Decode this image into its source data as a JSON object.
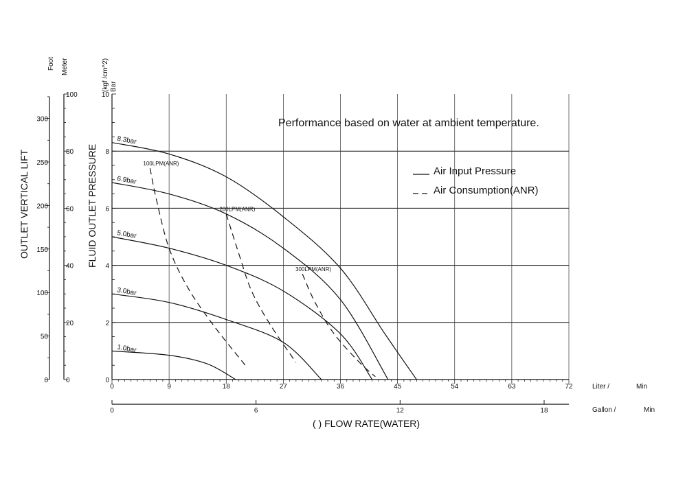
{
  "chart_data": {
    "type": "line",
    "title": "",
    "note": "Performance based on water at ambient temperature.",
    "xlabel": "(    ) FLOW RATE(WATER)",
    "x_units": {
      "primary": "Liter /",
      "primary_time": "Min",
      "secondary": "Gallon /",
      "secondary_time": "Min"
    },
    "xlim": [
      0,
      72
    ],
    "x_ticks": [
      0,
      9,
      18,
      27,
      36,
      45,
      54,
      63,
      72
    ],
    "x2_ticks": [
      0,
      6,
      12,
      18
    ],
    "x2_ticks_values_lpm": [
      0,
      22.7,
      45.4,
      68.1
    ],
    "ylabel": "FLUID OUTLET PRESSURE",
    "y_units": [
      "(kgf /cm^2)",
      "Bar"
    ],
    "ylim": [
      0,
      10
    ],
    "y_ticks": [
      0,
      2,
      4,
      6,
      8,
      10
    ],
    "left_axis_label": "OUTLET VERTICAL LIFT",
    "foot_axis": {
      "unit": "Foot",
      "ticks": [
        0,
        50,
        100,
        150,
        200,
        250,
        300
      ]
    },
    "meter_axis": {
      "unit": "Meter",
      "ticks": [
        0,
        20,
        40,
        60,
        80,
        100
      ]
    },
    "grid": {
      "horizontal": true,
      "vertical": true
    },
    "legend": {
      "position": "top-right",
      "entries": [
        {
          "label": "Air Input Pressure",
          "style": "solid"
        },
        {
          "label": "Air Consumption(ANR)",
          "style": "dashed"
        }
      ]
    },
    "series": [
      {
        "name": "8.3bar",
        "style": "solid",
        "points": [
          [
            0,
            8.3
          ],
          [
            9,
            7.9
          ],
          [
            18,
            7.1
          ],
          [
            27,
            5.7
          ],
          [
            36,
            3.9
          ],
          [
            43,
            1.6
          ],
          [
            48,
            0
          ]
        ]
      },
      {
        "name": "6.9bar",
        "style": "solid",
        "points": [
          [
            0,
            6.9
          ],
          [
            9,
            6.5
          ],
          [
            18,
            5.8
          ],
          [
            27,
            4.6
          ],
          [
            36,
            2.8
          ],
          [
            43.5,
            0
          ]
        ]
      },
      {
        "name": "5.0bar",
        "style": "solid",
        "points": [
          [
            0,
            5.0
          ],
          [
            9,
            4.6
          ],
          [
            18,
            4.0
          ],
          [
            27,
            3.1
          ],
          [
            36,
            1.6
          ],
          [
            41,
            0
          ]
        ]
      },
      {
        "name": "3.0bar",
        "style": "solid",
        "points": [
          [
            0,
            3.0
          ],
          [
            9,
            2.7
          ],
          [
            18,
            2.1
          ],
          [
            27,
            1.3
          ],
          [
            33,
            0
          ]
        ]
      },
      {
        "name": "1.0bar",
        "style": "solid",
        "points": [
          [
            0,
            1.0
          ],
          [
            9,
            0.85
          ],
          [
            15,
            0.55
          ],
          [
            19.5,
            0
          ]
        ]
      },
      {
        "name": "100LPM(ANR)",
        "style": "dashed",
        "points": [
          [
            6,
            7.4
          ],
          [
            7,
            6.3
          ],
          [
            9,
            4.6
          ],
          [
            12,
            3.2
          ],
          [
            16,
            1.9
          ],
          [
            21,
            0.5
          ]
        ]
      },
      {
        "name": "200LPM(ANR)",
        "style": "dashed",
        "points": [
          [
            18,
            5.8
          ],
          [
            20,
            4.4
          ],
          [
            22,
            3.1
          ],
          [
            25,
            1.9
          ],
          [
            29,
            0.6
          ]
        ]
      },
      {
        "name": "300LPM(ANR)",
        "style": "dashed",
        "points": [
          [
            30,
            3.7
          ],
          [
            32,
            2.7
          ],
          [
            35,
            1.6
          ],
          [
            39,
            0.6
          ],
          [
            41.5,
            0.1
          ]
        ]
      }
    ]
  }
}
